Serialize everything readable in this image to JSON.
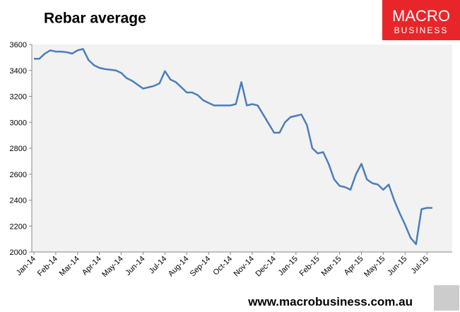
{
  "chart_data": {
    "type": "line",
    "title": "Rebar average",
    "categories": [
      "Jan-14",
      null,
      null,
      null,
      "Feb-14",
      null,
      null,
      null,
      "Mar-14",
      null,
      null,
      null,
      "Apr-14",
      null,
      null,
      null,
      "May-14",
      null,
      null,
      null,
      "Jun-14",
      null,
      null,
      null,
      "Jul-14",
      null,
      null,
      null,
      "Aug-14",
      null,
      null,
      null,
      "Sep-14",
      null,
      null,
      null,
      "Oct-14",
      null,
      null,
      null,
      "Nov-14",
      null,
      null,
      null,
      "Dec-14",
      null,
      null,
      null,
      "Jan-15",
      null,
      null,
      null,
      "Feb-15",
      null,
      null,
      null,
      "Mar-15",
      null,
      null,
      null,
      "Apr-15",
      null,
      null,
      null,
      "May-15",
      null,
      null,
      null,
      "Jun-15",
      null,
      null,
      null,
      "Jul-15",
      null
    ],
    "series": [
      {
        "name": "Rebar",
        "color": "#4a7ebb",
        "values": [
          3490,
          3490,
          3530,
          3555,
          3545,
          3545,
          3540,
          3530,
          3555,
          3565,
          3480,
          3440,
          3420,
          3410,
          3405,
          3400,
          3380,
          3340,
          3320,
          3290,
          3260,
          3270,
          3280,
          3300,
          3395,
          3330,
          3310,
          3270,
          3230,
          3230,
          3210,
          3170,
          3150,
          3130,
          3130,
          3130,
          3130,
          3140,
          3310,
          3130,
          3140,
          3130,
          3060,
          2990,
          2920,
          2920,
          3000,
          3040,
          3050,
          3060,
          2980,
          2800,
          2760,
          2770,
          2680,
          2560,
          2510,
          2500,
          2480,
          2600,
          2680,
          2560,
          2530,
          2520,
          2480,
          2520,
          2400,
          2300,
          2210,
          2110,
          2060,
          2330,
          2340,
          2340
        ]
      }
    ],
    "ylim": [
      2000,
      3600
    ],
    "yticks": [
      2000,
      2200,
      2400,
      2600,
      2800,
      3000,
      3200,
      3400,
      3600
    ],
    "grid": false
  },
  "logo": {
    "line1": "MACRO",
    "line2": "BUSINESS"
  },
  "footer": "www.macrobusiness.com.au"
}
